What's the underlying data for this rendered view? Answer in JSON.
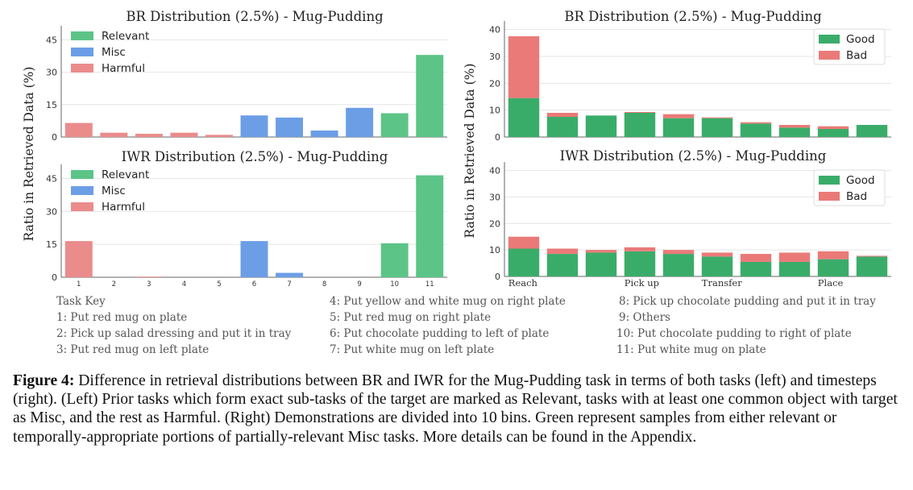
{
  "y_axis_label": "Ratio in Retrieved Data (%)",
  "colors": {
    "relevant": "#5cc487",
    "misc": "#6c9ee6",
    "harmful": "#eb8c8c",
    "good": "#3aac6a",
    "bad": "#ea7a78",
    "grid": "#e6e6e6"
  },
  "task_key": {
    "title": "Task Key",
    "items": [
      "1: Put red mug on plate",
      "2: Pick up salad dressing and put it in tray",
      "3: Put red mug on left plate",
      "4: Put yellow and white mug on right plate",
      "5: Put red mug on right plate",
      "6: Put chocolate pudding to left of plate",
      "7: Put white mug on left plate",
      "8: Pick up chocolate pudding and put it in tray",
      "9: Others",
      "10: Put chocolate pudding to right of plate",
      "11: Put white mug on plate"
    ]
  },
  "caption": {
    "label": "Figure 4:",
    "text": " Difference in retrieval distributions between BR and IWR for the Mug-Pudding task in terms of both tasks (left) and timesteps (right). (Left) Prior tasks which form exact sub-tasks of the target are marked as Relevant, tasks with at least one common object with target as Misc, and the rest as Harmful. (Right) Demonstrations are divided into 10 bins. Green represent samples from either relevant or temporally-appropriate portions of partially-relevant Misc tasks. More details can be found in the Appendix."
  },
  "chart_data": [
    {
      "type": "bar",
      "title": "BR Distribution (2.5%) - Mug-Pudding",
      "categories": [
        "1",
        "2",
        "3",
        "4",
        "5",
        "6",
        "7",
        "8",
        "9",
        "10",
        "11"
      ],
      "show_tick_labels": false,
      "values": [
        6.5,
        2.0,
        1.5,
        2.0,
        1.0,
        10.0,
        9.0,
        3.0,
        13.5,
        11.0,
        38.0
      ],
      "groups": [
        "Harmful",
        "Harmful",
        "Harmful",
        "Harmful",
        "Harmful",
        "Misc",
        "Misc",
        "Misc",
        "Misc",
        "Relevant",
        "Relevant"
      ],
      "legend": [
        "Relevant",
        "Misc",
        "Harmful"
      ],
      "legend_position": "top-left",
      "yticks": [
        0,
        15,
        30,
        45
      ],
      "ylim": [
        0,
        50
      ],
      "grid": true
    },
    {
      "type": "bar",
      "title": "IWR Distribution (2.5%) - Mug-Pudding",
      "categories": [
        "1",
        "2",
        "3",
        "4",
        "5",
        "6",
        "7",
        "8",
        "9",
        "10",
        "11"
      ],
      "show_tick_labels": true,
      "values": [
        16.5,
        0,
        0.3,
        0,
        0,
        16.5,
        2.0,
        0,
        0,
        15.5,
        46.5
      ],
      "groups": [
        "Harmful",
        "Harmful",
        "Harmful",
        "Harmful",
        "Harmful",
        "Misc",
        "Misc",
        "Misc",
        "Misc",
        "Relevant",
        "Relevant"
      ],
      "legend": [
        "Relevant",
        "Misc",
        "Harmful"
      ],
      "legend_position": "top-left",
      "yticks": [
        0,
        15,
        30,
        45
      ],
      "ylim": [
        0,
        50
      ],
      "grid": true
    },
    {
      "type": "bar",
      "stacked": true,
      "title": "BR Distribution (2.5%) - Mug-Pudding",
      "categories": [
        "1",
        "2",
        "3",
        "4",
        "5",
        "6",
        "7",
        "8",
        "9",
        "10"
      ],
      "series": [
        {
          "name": "Good",
          "values": [
            14.5,
            7.5,
            8.0,
            9.0,
            7.0,
            7.0,
            5.0,
            3.5,
            3.0,
            4.5
          ]
        },
        {
          "name": "Bad",
          "values": [
            23.0,
            1.5,
            0.0,
            0.3,
            1.5,
            0.3,
            0.5,
            1.0,
            1.0,
            0.0
          ]
        }
      ],
      "legend_position": "top-right",
      "yticks": [
        0,
        10,
        20,
        30,
        40
      ],
      "ylim": [
        0,
        42
      ],
      "grid": true
    },
    {
      "type": "bar",
      "stacked": true,
      "title": "IWR Distribution (2.5%) - Mug-Pudding",
      "categories": [
        "1",
        "2",
        "3",
        "4",
        "5",
        "6",
        "7",
        "8",
        "9",
        "10"
      ],
      "series": [
        {
          "name": "Good",
          "values": [
            10.5,
            8.5,
            9.0,
            9.5,
            8.5,
            7.5,
            5.5,
            5.5,
            6.5,
            7.5
          ]
        },
        {
          "name": "Bad",
          "values": [
            4.5,
            2.0,
            1.0,
            1.5,
            1.5,
            1.5,
            3.0,
            3.5,
            3.0,
            0.3
          ]
        }
      ],
      "legend_position": "top-right",
      "phase_labels": [
        "Reach",
        "Pick up",
        "Transfer",
        "Place"
      ],
      "yticks": [
        0,
        10,
        20,
        30,
        40
      ],
      "ylim": [
        0,
        42
      ],
      "grid": true
    }
  ]
}
